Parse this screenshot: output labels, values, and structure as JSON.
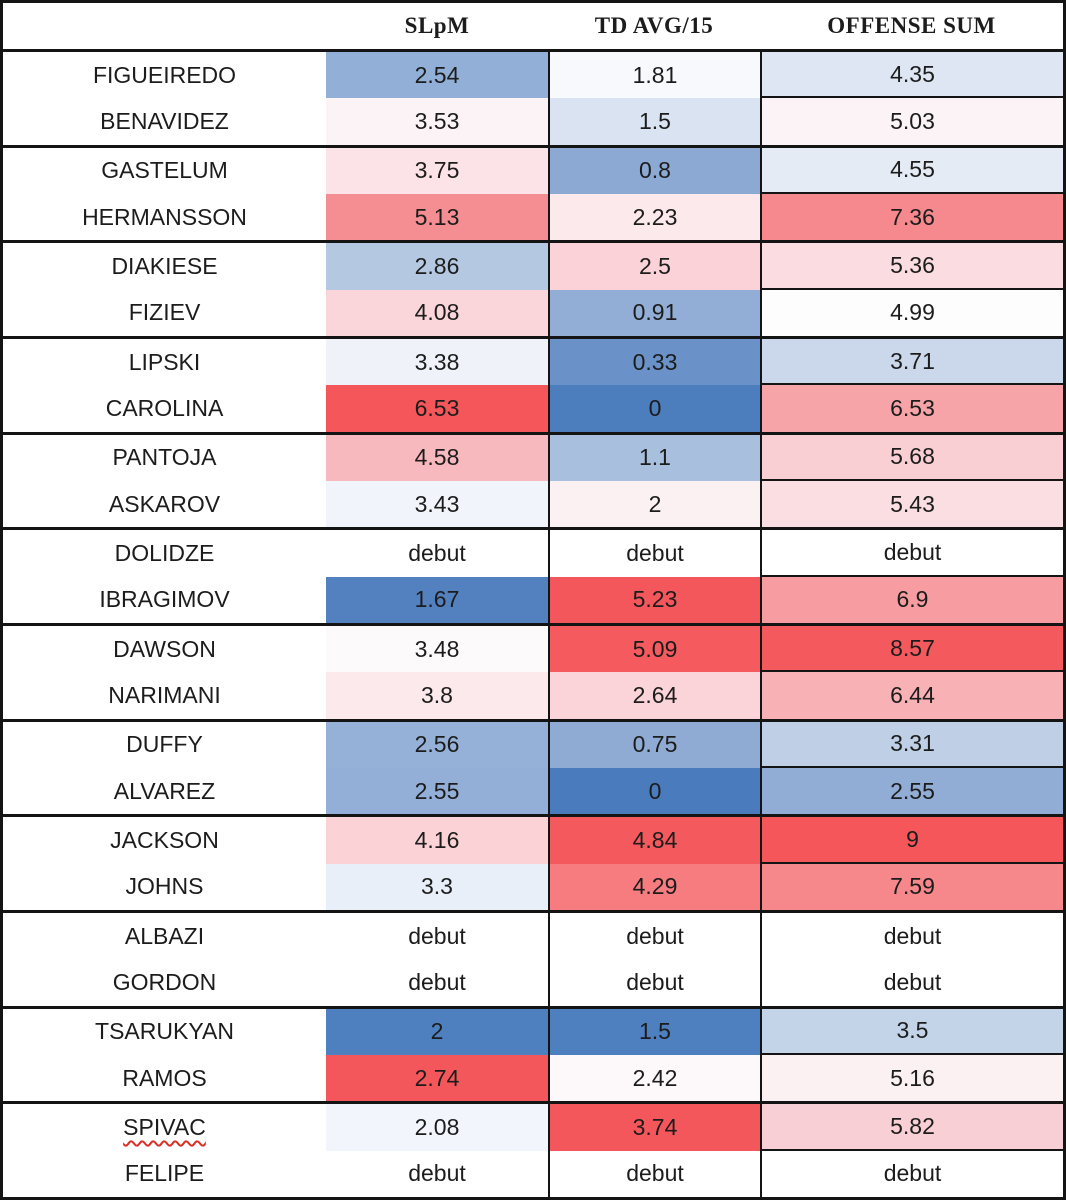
{
  "header": {
    "fighter_col": "",
    "slpm": "SLpM",
    "td_avg": "TD AVG/15",
    "offense_sum": "OFFENSE SUM"
  },
  "colors": {
    "border": "#141414",
    "text": "#1c1c1c",
    "spellcheck_underline": "#d93025",
    "heat_low_blue": "#4C7EBE",
    "heat_mid_white": "#FFFFFF",
    "heat_high_red": "#F4565A"
  },
  "chart_data": {
    "type": "table",
    "title": "",
    "columns": [
      "",
      "SLpM",
      "TD AVG/15",
      "OFFENSE SUM"
    ],
    "legend": "heatmap cells: blue = low value, white = mid, red = high value; fighters grouped in matchup pairs",
    "rows": [
      {
        "name": "FIGUEIREDO",
        "slpm": "2.54",
        "td": "1.81",
        "sum": "4.35",
        "slpm_bg": "#92AFD7",
        "td_bg": "#F7F9FD",
        "sum_bg": "#DDE6F2",
        "divider": true,
        "misspelled": false
      },
      {
        "name": "BENAVIDEZ",
        "slpm": "3.53",
        "td": "1.5",
        "sum": "5.03",
        "slpm_bg": "#FBF3F6",
        "td_bg": "#D9E3F1",
        "sum_bg": "#FBF3F5",
        "divider": false,
        "misspelled": false
      },
      {
        "name": "GASTELUM",
        "slpm": "3.75",
        "td": "0.8",
        "sum": "4.55",
        "slpm_bg": "#FCE3E7",
        "td_bg": "#8CA9D4",
        "sum_bg": "#E5EBF5",
        "divider": true,
        "misspelled": false
      },
      {
        "name": "HERMANSSON",
        "slpm": "5.13",
        "td": "2.23",
        "sum": "7.36",
        "slpm_bg": "#F58E92",
        "td_bg": "#FCE9EC",
        "sum_bg": "#F5898D",
        "divider": false,
        "misspelled": false
      },
      {
        "name": "DIAKIESE",
        "slpm": "2.86",
        "td": "2.5",
        "sum": "5.36",
        "slpm_bg": "#B5C8E2",
        "td_bg": "#FAD2D7",
        "sum_bg": "#FBDCE0",
        "divider": true,
        "misspelled": false
      },
      {
        "name": "FIZIEV",
        "slpm": "4.08",
        "td": "0.91",
        "sum": "4.99",
        "slpm_bg": "#FAD6DB",
        "td_bg": "#92AED6",
        "sum_bg": "#FEFDFD",
        "divider": false,
        "misspelled": false
      },
      {
        "name": "LIPSKI",
        "slpm": "3.38",
        "td": "0.33",
        "sum": "3.71",
        "slpm_bg": "#EFF2F9",
        "td_bg": "#6B92C8",
        "sum_bg": "#CBD7EA",
        "divider": true,
        "misspelled": false
      },
      {
        "name": "CAROLINA",
        "slpm": "6.53",
        "td": "0",
        "sum": "6.53",
        "slpm_bg": "#F4565A",
        "td_bg": "#4C7EBE",
        "sum_bg": "#F7A4A8",
        "divider": false,
        "misspelled": false
      },
      {
        "name": "PANTOJA",
        "slpm": "4.58",
        "td": "1.1",
        "sum": "5.68",
        "slpm_bg": "#F8B9BE",
        "td_bg": "#A9BFDE",
        "sum_bg": "#FACFD4",
        "divider": true,
        "misspelled": false
      },
      {
        "name": "ASKAROV",
        "slpm": "3.43",
        "td": "2",
        "sum": "5.43",
        "slpm_bg": "#F1F4FA",
        "td_bg": "#FBF0F2",
        "sum_bg": "#FADEE1",
        "divider": false,
        "misspelled": false
      },
      {
        "name": "DOLIDZE",
        "slpm": "debut",
        "td": "debut",
        "sum": "debut",
        "slpm_bg": "#FFFFFF",
        "td_bg": "#FFFFFF",
        "sum_bg": "#FFFFFF",
        "divider": true,
        "misspelled": false
      },
      {
        "name": "IBRAGIMOV",
        "slpm": "1.67",
        "td": "5.23",
        "sum": "6.9",
        "slpm_bg": "#5381BF",
        "td_bg": "#F4575B",
        "sum_bg": "#F79CA0",
        "divider": false,
        "misspelled": false
      },
      {
        "name": "DAWSON",
        "slpm": "3.48",
        "td": "5.09",
        "sum": "8.57",
        "slpm_bg": "#FDFAFB",
        "td_bg": "#F45A5E",
        "sum_bg": "#F4595D",
        "divider": true,
        "misspelled": false
      },
      {
        "name": "NARIMANI",
        "slpm": "3.8",
        "td": "2.64",
        "sum": "6.44",
        "slpm_bg": "#FCE9EC",
        "td_bg": "#FAD4D8",
        "sum_bg": "#F8B2B6",
        "divider": false,
        "misspelled": false
      },
      {
        "name": "DUFFY",
        "slpm": "2.56",
        "td": "0.75",
        "sum": "3.31",
        "slpm_bg": "#95B1D8",
        "td_bg": "#8FABD4",
        "sum_bg": "#BECFE6",
        "divider": true,
        "misspelled": false
      },
      {
        "name": "ALVAREZ",
        "slpm": "2.55",
        "td": "0",
        "sum": "2.55",
        "slpm_bg": "#93AFD7",
        "td_bg": "#4A7CBD",
        "sum_bg": "#91ADD5",
        "divider": false,
        "misspelled": false
      },
      {
        "name": "JACKSON",
        "slpm": "4.16",
        "td": "4.84",
        "sum": "9",
        "slpm_bg": "#FBD3D7",
        "td_bg": "#F4595D",
        "sum_bg": "#F4565A",
        "divider": true,
        "misspelled": false
      },
      {
        "name": "JOHNS",
        "slpm": "3.3",
        "td": "4.29",
        "sum": "7.59",
        "slpm_bg": "#E9EFF8",
        "td_bg": "#F67C80",
        "sum_bg": "#F6888C",
        "divider": false,
        "misspelled": false
      },
      {
        "name": "ALBAZI",
        "slpm": "debut",
        "td": "debut",
        "sum": "debut",
        "slpm_bg": "#FFFFFF",
        "td_bg": "#FFFFFF",
        "sum_bg": "#FFFFFF",
        "divider": false,
        "misspelled": false
      },
      {
        "name": "GORDON",
        "slpm": "debut",
        "td": "debut",
        "sum": "debut",
        "slpm_bg": "#FFFFFF",
        "td_bg": "#FFFFFF",
        "sum_bg": "#FFFFFF",
        "divider": false,
        "misspelled": false
      },
      {
        "name": "TSARUKYAN",
        "slpm": "2",
        "td": "1.5",
        "sum": "3.5",
        "slpm_bg": "#4E7FBE",
        "td_bg": "#4E7FBE",
        "sum_bg": "#C3D3E8",
        "divider": true,
        "misspelled": false
      },
      {
        "name": "RAMOS",
        "slpm": "2.74",
        "td": "2.42",
        "sum": "5.16",
        "slpm_bg": "#F4575B",
        "td_bg": "#FDF8F9",
        "sum_bg": "#FBF1F3",
        "divider": false,
        "misspelled": false
      },
      {
        "name": "SPIVAC",
        "slpm": "2.08",
        "td": "3.74",
        "sum": "5.82",
        "slpm_bg": "#F2F5FB",
        "td_bg": "#F4575B",
        "sum_bg": "#F8CFD4",
        "divider": true,
        "misspelled": true
      },
      {
        "name": "FELIPE",
        "slpm": "debut",
        "td": "debut",
        "sum": "debut",
        "slpm_bg": "#FFFFFF",
        "td_bg": "#FFFFFF",
        "sum_bg": "#FFFFFF",
        "divider": false,
        "misspelled": false
      }
    ]
  }
}
